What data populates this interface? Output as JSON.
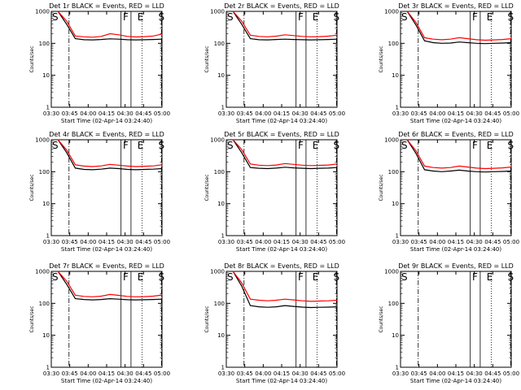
{
  "colors": {
    "events": "#000000",
    "lld": "#ff0000",
    "background": "#ffffff"
  },
  "chart_data": [
    {
      "type": "line",
      "title": "Det 1r BLACK = Events, RED = LLD",
      "ylabel": "Counts/sec",
      "xlabel": "Start Time (02-Apr-14 03:24:40)",
      "x_ticks": [
        "03:30",
        "03:45",
        "04:00",
        "04:15",
        "04:30",
        "04:45",
        "05:00"
      ],
      "y_ticks": [
        "1",
        "10",
        "100",
        "1000"
      ],
      "ylim": [
        1,
        1000
      ],
      "yscale": "log",
      "markers": [
        "S",
        "F",
        "E",
        "S"
      ],
      "series": [
        {
          "color": "#000000",
          "values": [
            1000,
            400,
            140,
            130,
            128,
            132,
            138,
            135,
            130,
            128,
            130,
            132,
            135
          ]
        },
        {
          "color": "#ff0000",
          "values": [
            1000,
            500,
            170,
            160,
            155,
            165,
            200,
            185,
            165,
            158,
            162,
            170,
            195
          ]
        }
      ]
    },
    {
      "type": "line",
      "title": "Det 2r BLACK = Events, RED = LLD",
      "ylabel": "Counts/sec",
      "xlabel": "Start Time (02-Apr-14 03:24:40)",
      "x_ticks": [
        "03:30",
        "03:45",
        "04:00",
        "04:15",
        "04:30",
        "04:45",
        "05:00"
      ],
      "y_ticks": [
        "1",
        "10",
        "100",
        "1000"
      ],
      "ylim": [
        1,
        1000
      ],
      "yscale": "log",
      "markers": [
        "S",
        "F",
        "E",
        "S"
      ],
      "series": [
        {
          "color": "#000000",
          "values": [
            1000,
            400,
            140,
            130,
            128,
            132,
            135,
            132,
            130,
            128,
            130,
            132,
            135
          ]
        },
        {
          "color": "#ff0000",
          "values": [
            1000,
            500,
            180,
            165,
            160,
            168,
            185,
            175,
            165,
            160,
            162,
            168,
            180
          ]
        }
      ]
    },
    {
      "type": "line",
      "title": "Det 3r BLACK = Events, RED = LLD",
      "ylabel": "Counts/sec",
      "xlabel": "Start Time (02-Apr-14 03:24:40)",
      "x_ticks": [
        "03:30",
        "03:45",
        "04:00",
        "04:15",
        "04:30",
        "04:45",
        "05:00"
      ],
      "y_ticks": [
        "1",
        "10",
        "100",
        "1000"
      ],
      "ylim": [
        1,
        1000
      ],
      "yscale": "log",
      "markers": [
        "S",
        "F",
        "E",
        "S"
      ],
      "series": [
        {
          "color": "#000000",
          "values": [
            1000,
            380,
            120,
            105,
            100,
            102,
            110,
            105,
            100,
            98,
            100,
            102,
            105
          ]
        },
        {
          "color": "#ff0000",
          "values": [
            1000,
            460,
            150,
            135,
            130,
            135,
            150,
            140,
            130,
            125,
            128,
            132,
            140
          ]
        }
      ]
    },
    {
      "type": "line",
      "title": "Det 4r BLACK = Events, RED = LLD",
      "ylabel": "Counts/sec",
      "xlabel": "Start Time (02-Apr-14 03:24:40)",
      "x_ticks": [
        "03:30",
        "03:45",
        "04:00",
        "04:15",
        "04:30",
        "04:45",
        "05:00"
      ],
      "y_ticks": [
        "1",
        "10",
        "100",
        "1000"
      ],
      "ylim": [
        1,
        1000
      ],
      "yscale": "log",
      "markers": [
        "S",
        "F",
        "E",
        "S"
      ],
      "series": [
        {
          "color": "#000000",
          "values": [
            1000,
            400,
            130,
            118,
            115,
            120,
            130,
            125,
            118,
            115,
            118,
            120,
            125
          ]
        },
        {
          "color": "#ff0000",
          "values": [
            1000,
            480,
            165,
            150,
            145,
            152,
            170,
            160,
            150,
            145,
            148,
            152,
            165
          ]
        }
      ]
    },
    {
      "type": "line",
      "title": "Det 5r BLACK = Events, RED = LLD",
      "ylabel": "Counts/sec",
      "xlabel": "Start Time (02-Apr-14 03:24:40)",
      "x_ticks": [
        "03:30",
        "03:45",
        "04:00",
        "04:15",
        "04:30",
        "04:45",
        "05:00"
      ],
      "y_ticks": [
        "1",
        "10",
        "100",
        "1000"
      ],
      "ylim": [
        1,
        1000
      ],
      "yscale": "log",
      "markers": [
        "S",
        "F",
        "E",
        "S"
      ],
      "series": [
        {
          "color": "#000000",
          "values": [
            1000,
            400,
            135,
            128,
            125,
            130,
            138,
            132,
            128,
            125,
            128,
            130,
            135
          ]
        },
        {
          "color": "#ff0000",
          "values": [
            1000,
            500,
            175,
            160,
            155,
            162,
            180,
            170,
            160,
            155,
            158,
            162,
            175
          ]
        }
      ]
    },
    {
      "type": "line",
      "title": "Det 6r BLACK = Events, RED = LLD",
      "ylabel": "Counts/sec",
      "xlabel": "Start Time (02-Apr-14 03:24:40)",
      "x_ticks": [
        "03:30",
        "03:45",
        "04:00",
        "04:15",
        "04:30",
        "04:45",
        "05:00"
      ],
      "y_ticks": [
        "1",
        "10",
        "100",
        "1000"
      ],
      "ylim": [
        1,
        1000
      ],
      "yscale": "log",
      "markers": [
        "S",
        "F",
        "E",
        "S"
      ],
      "series": [
        {
          "color": "#000000",
          "values": [
            1000,
            380,
            115,
            105,
            100,
            105,
            112,
            105,
            100,
            98,
            100,
            102,
            105
          ]
        },
        {
          "color": "#ff0000",
          "values": [
            1000,
            460,
            150,
            135,
            130,
            135,
            150,
            140,
            130,
            125,
            128,
            132,
            140
          ]
        }
      ]
    },
    {
      "type": "line",
      "title": "Det 7r BLACK = Events, RED = LLD",
      "ylabel": "Counts/sec",
      "xlabel": "Start Time (02-Apr-14 03:24:40)",
      "x_ticks": [
        "03:30",
        "03:45",
        "04:00",
        "04:15",
        "04:30",
        "04:45",
        "05:00"
      ],
      "y_ticks": [
        "1",
        "10",
        "100",
        "1000"
      ],
      "ylim": [
        1,
        1000
      ],
      "yscale": "log",
      "markers": [
        "S",
        "F",
        "E",
        "S"
      ],
      "series": [
        {
          "color": "#000000",
          "values": [
            1000,
            400,
            140,
            132,
            128,
            132,
            140,
            135,
            130,
            128,
            130,
            132,
            135
          ]
        },
        {
          "color": "#ff0000",
          "values": [
            1000,
            500,
            180,
            165,
            160,
            168,
            190,
            178,
            165,
            160,
            162,
            168,
            182
          ]
        }
      ]
    },
    {
      "type": "line",
      "title": "Det 8r BLACK = Events, RED = LLD",
      "ylabel": "Counts/sec",
      "xlabel": "Start Time (02-Apr-14 03:24:40)",
      "x_ticks": [
        "03:30",
        "03:45",
        "04:00",
        "04:15",
        "04:30",
        "04:45",
        "05:00"
      ],
      "y_ticks": [
        "1",
        "10",
        "100",
        "1000"
      ],
      "ylim": [
        1,
        1000
      ],
      "yscale": "log",
      "markers": [
        "S",
        "F",
        "E",
        "S"
      ],
      "series": [
        {
          "color": "#000000",
          "values": [
            1000,
            350,
            85,
            78,
            75,
            78,
            85,
            80,
            76,
            74,
            75,
            76,
            78
          ]
        },
        {
          "color": "#ff0000",
          "values": [
            1000,
            440,
            135,
            125,
            120,
            125,
            135,
            128,
            120,
            115,
            118,
            120,
            125
          ]
        }
      ]
    },
    {
      "type": "line",
      "title": "Det 9r BLACK = Events, RED = LLD",
      "ylabel": "Counts/sec",
      "xlabel": "Start Time (02-Apr-14 03:24:40)",
      "x_ticks": [
        "03:30",
        "03:45",
        "04:00",
        "04:15",
        "04:30",
        "04:45",
        "05:00"
      ],
      "y_ticks": [
        "1",
        "10",
        "100",
        "1000"
      ],
      "ylim": [
        1,
        1000
      ],
      "yscale": "log",
      "markers": [
        "S",
        "F",
        "E",
        "S"
      ],
      "series": []
    }
  ]
}
